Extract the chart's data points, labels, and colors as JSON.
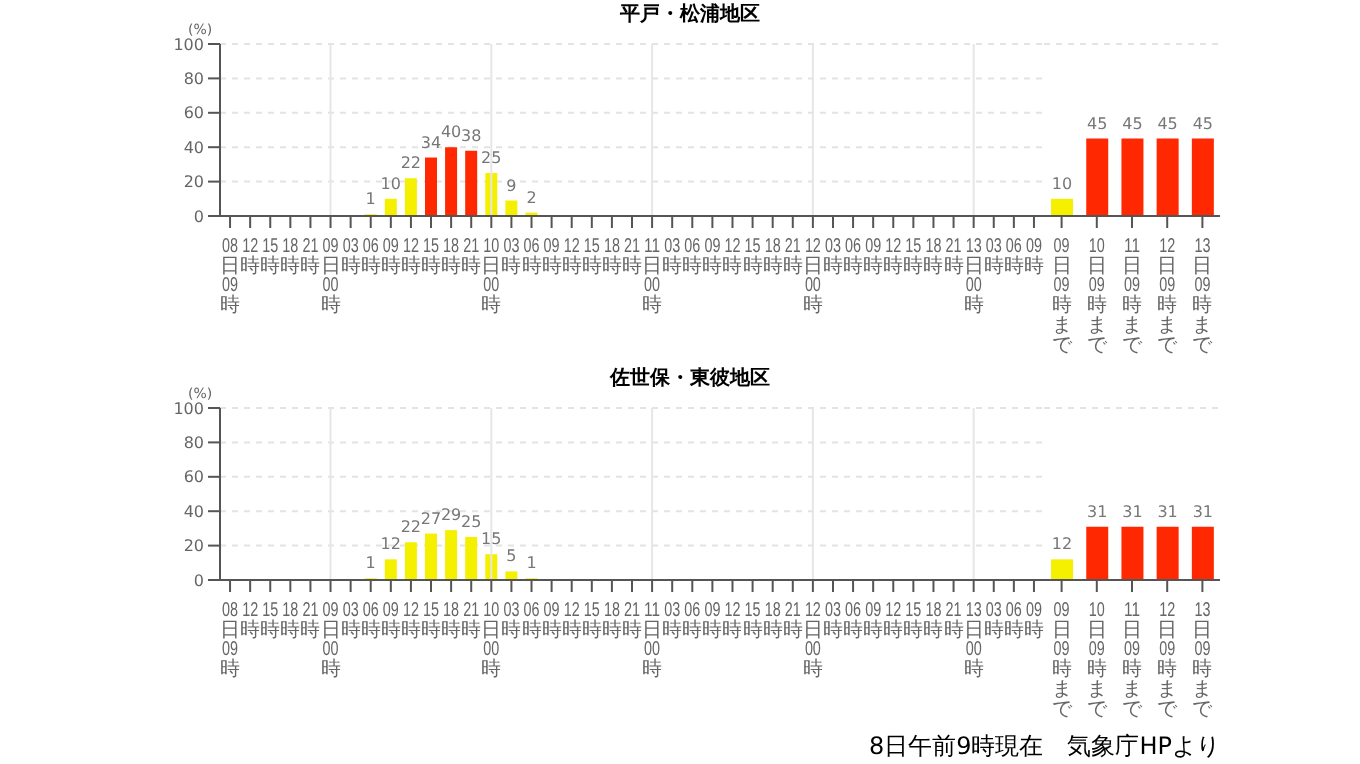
{
  "chart_data": [
    {
      "type": "bar",
      "title": "平戸・松浦地区",
      "ylabel": "(%)",
      "categories": [
        "08日09時",
        "12時",
        "15時",
        "18時",
        "21時",
        "09日00時",
        "03時",
        "06時",
        "09時",
        "12時",
        "15時",
        "18時",
        "21時",
        "10日00時",
        "03時",
        "06時",
        "09時",
        "12時",
        "15時",
        "18時",
        "21時",
        "11日00時",
        "03時",
        "06時",
        "09時",
        "12時",
        "15時",
        "18時",
        "21時",
        "12日00時",
        "03時",
        "06時",
        "09時",
        "12時",
        "15時",
        "18時",
        "21時",
        "13日00時",
        "03時",
        "06時",
        "09時"
      ],
      "values": [
        null,
        null,
        null,
        null,
        null,
        null,
        null,
        1,
        10,
        22,
        34,
        40,
        38,
        25,
        9,
        2,
        null,
        null,
        null,
        null,
        null,
        null,
        null,
        null,
        null,
        null,
        null,
        null,
        null,
        null,
        null,
        null,
        null,
        null,
        null,
        null,
        null,
        null,
        null,
        null,
        null
      ],
      "colors": [
        "#f5f000",
        "#f5f000",
        "#f5f000",
        "#f5f000",
        "#f5f000",
        "#f5f000",
        "#f5f000",
        "#f5f000",
        "#f5f000",
        "#f5f000",
        "#ff2800",
        "#ff2800",
        "#ff2800",
        "#f5f000",
        "#f5f000",
        "#f5f000",
        "#f5f000",
        "#f5f000",
        "#f5f000",
        "#f5f000",
        "#f5f000",
        "#f5f000",
        "#f5f000",
        "#f5f000",
        "#f5f000",
        "#f5f000",
        "#f5f000",
        "#f5f000",
        "#f5f000",
        "#f5f000",
        "#f5f000",
        "#f5f000",
        "#f5f000",
        "#f5f000",
        "#f5f000",
        "#f5f000",
        "#f5f000",
        "#f5f000",
        "#f5f000",
        "#f5f000",
        "#f5f000"
      ],
      "ylim": [
        0,
        100
      ],
      "yticks": [
        0,
        20,
        40,
        60,
        80,
        100
      ],
      "grid": "y",
      "data_labels": true,
      "ref_lines": [
        {
          "axis": "x",
          "value": "09日00時",
          "color": "#e6e6e6"
        },
        {
          "axis": "x",
          "value": "10日00時",
          "color": "#e6e6e6"
        },
        {
          "axis": "x",
          "value": "11日00時",
          "color": "#e6e6e6"
        },
        {
          "axis": "x",
          "value": "12日00時",
          "color": "#e6e6e6"
        },
        {
          "axis": "x",
          "value": "13日00時",
          "color": "#e6e6e6"
        }
      ]
    },
    {
      "type": "bar",
      "categories": [
        "09日09時まで",
        "10日09時まで",
        "11日09時まで",
        "12日09時まで",
        "13日09時まで"
      ],
      "values": [
        10,
        45,
        45,
        45,
        45
      ],
      "colors": [
        "#f5f000",
        "#ff2800",
        "#ff2800",
        "#ff2800",
        "#ff2800"
      ],
      "ylim": [
        0,
        100
      ],
      "yticks": [
        0,
        20,
        40,
        60,
        80,
        100
      ],
      "grid": "y",
      "data_labels": true,
      "tick_labels": "x"
    },
    {
      "type": "bar",
      "title": "佐世保・東彼地区",
      "ylabel": "(%)",
      "categories": [
        "08日09時",
        "12時",
        "15時",
        "18時",
        "21時",
        "09日00時",
        "03時",
        "06時",
        "09時",
        "12時",
        "15時",
        "18時",
        "21時",
        "10日00時",
        "03時",
        "06時",
        "09時",
        "12時",
        "15時",
        "18時",
        "21時",
        "11日00時",
        "03時",
        "06時",
        "09時",
        "12時",
        "15時",
        "18時",
        "21時",
        "12日00時",
        "03時",
        "06時",
        "09時",
        "12時",
        "15時",
        "18時",
        "21時",
        "13日00時",
        "03時",
        "06時",
        "09時"
      ],
      "values": [
        null,
        null,
        null,
        null,
        null,
        null,
        null,
        1,
        12,
        22,
        27,
        29,
        25,
        15,
        5,
        1,
        null,
        null,
        null,
        null,
        null,
        null,
        null,
        null,
        null,
        null,
        null,
        null,
        null,
        null,
        null,
        null,
        null,
        null,
        null,
        null,
        null,
        null,
        null,
        null,
        null
      ],
      "colors": [
        "#f5f000",
        "#f5f000",
        "#f5f000",
        "#f5f000",
        "#f5f000",
        "#f5f000",
        "#f5f000",
        "#f5f000",
        "#f5f000",
        "#f5f000",
        "#f5f000",
        "#f5f000",
        "#f5f000",
        "#f5f000",
        "#f5f000",
        "#f5f000",
        "#f5f000",
        "#f5f000",
        "#f5f000",
        "#f5f000",
        "#f5f000",
        "#f5f000",
        "#f5f000",
        "#f5f000",
        "#f5f000",
        "#f5f000",
        "#f5f000",
        "#f5f000",
        "#f5f000",
        "#f5f000",
        "#f5f000",
        "#f5f000",
        "#f5f000",
        "#f5f000",
        "#f5f000",
        "#f5f000",
        "#f5f000",
        "#f5f000",
        "#f5f000",
        "#f5f000",
        "#f5f000"
      ],
      "ylim": [
        0,
        100
      ],
      "yticks": [
        0,
        20,
        40,
        60,
        80,
        100
      ],
      "grid": "y",
      "data_labels": true,
      "ref_lines": [
        {
          "axis": "x",
          "value": "09日00時",
          "color": "#e6e6e6"
        },
        {
          "axis": "x",
          "value": "10日00時",
          "color": "#e6e6e6"
        },
        {
          "axis": "x",
          "value": "11日00時",
          "color": "#e6e6e6"
        },
        {
          "axis": "x",
          "value": "12日00時",
          "color": "#e6e6e6"
        },
        {
          "axis": "x",
          "value": "13日00時",
          "color": "#e6e6e6"
        }
      ]
    },
    {
      "type": "bar",
      "categories": [
        "09日09時まで",
        "10日09時まで",
        "11日09時まで",
        "12日09時まで",
        "13日09時まで"
      ],
      "values": [
        12,
        31,
        31,
        31,
        31
      ],
      "colors": [
        "#f5f000",
        "#ff2800",
        "#ff2800",
        "#ff2800",
        "#ff2800"
      ],
      "ylim": [
        0,
        100
      ],
      "yticks": [
        0,
        20,
        40,
        60,
        80,
        100
      ],
      "grid": "y",
      "data_labels": true,
      "tick_labels": "x",
      "annotations": [
        "8日午前9時現在　気象庁HPより"
      ]
    }
  ]
}
